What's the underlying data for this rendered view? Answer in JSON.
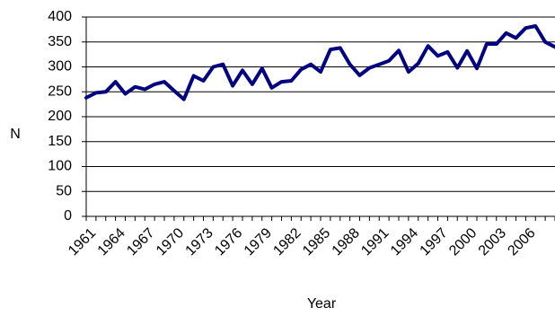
{
  "chart_data": {
    "type": "line",
    "title": "",
    "xlabel": "Year",
    "ylabel": "N",
    "ylim": [
      0,
      400
    ],
    "yticks": [
      0,
      50,
      100,
      150,
      200,
      250,
      300,
      350,
      400
    ],
    "x_tick_labels": [
      "1961",
      "1964",
      "1967",
      "1970",
      "1973",
      "1976",
      "1979",
      "1982",
      "1985",
      "1988",
      "1991",
      "1994",
      "1997",
      "2000",
      "2003",
      "2006"
    ],
    "grid": "horizontal",
    "legend": "none",
    "line_color": "#000080",
    "x": [
      1961,
      1962,
      1963,
      1964,
      1965,
      1966,
      1967,
      1968,
      1969,
      1970,
      1971,
      1972,
      1973,
      1974,
      1975,
      1976,
      1977,
      1978,
      1979,
      1980,
      1981,
      1982,
      1983,
      1984,
      1985,
      1986,
      1987,
      1988,
      1989,
      1990,
      1991,
      1992,
      1993,
      1994,
      1995,
      1996,
      1997,
      1998,
      1999,
      2000,
      2001,
      2002,
      2003,
      2004,
      2005,
      2006,
      2007,
      2008,
      2009
    ],
    "series": [
      {
        "values": [
          238,
          248,
          250,
          270,
          246,
          260,
          255,
          265,
          270,
          252,
          235,
          282,
          272,
          300,
          305,
          262,
          293,
          265,
          297,
          258,
          270,
          272,
          295,
          305,
          290,
          335,
          338,
          305,
          283,
          298,
          305,
          312,
          333,
          290,
          307,
          342,
          322,
          330,
          298,
          332,
          297,
          346,
          346,
          368,
          358,
          378,
          382,
          350,
          340
        ]
      }
    ]
  }
}
